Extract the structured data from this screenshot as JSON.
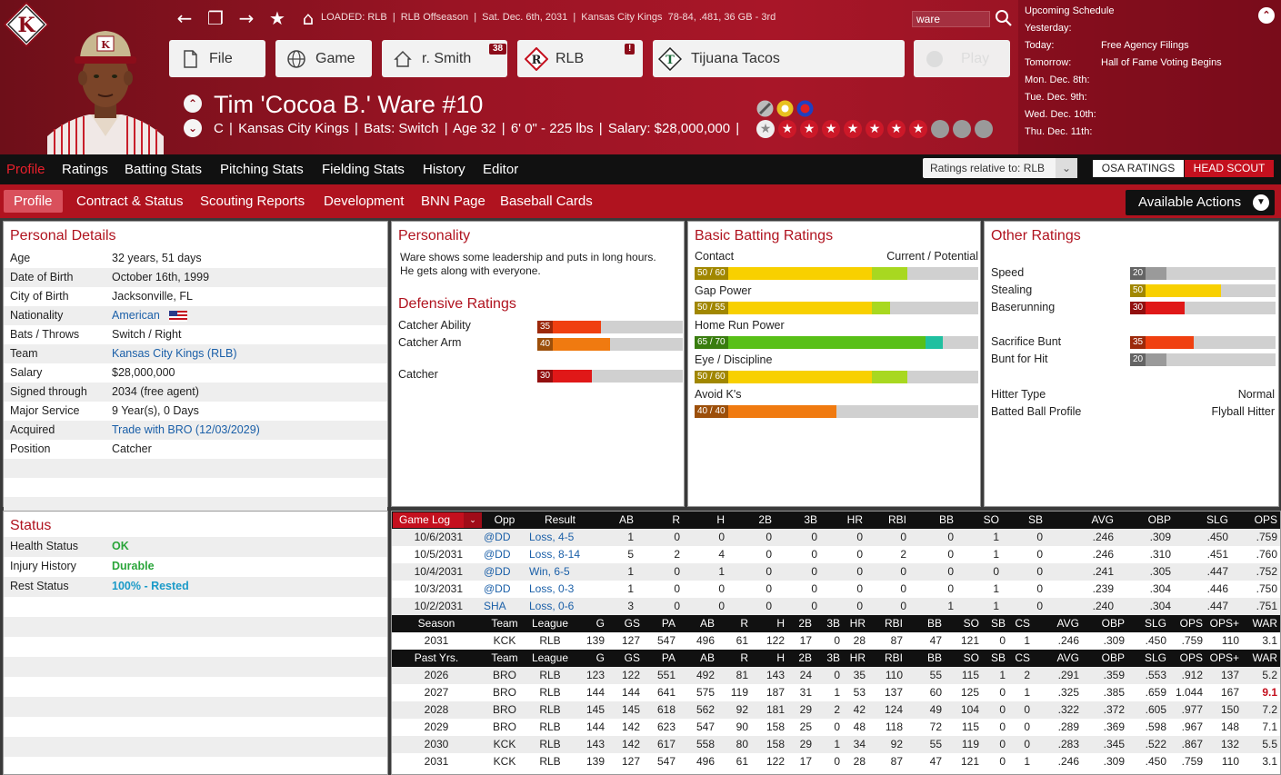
{
  "header": {
    "loaded": [
      "LOADED: RLB",
      "|",
      "RLB Offseason",
      "|",
      "Sat. Dec. 6th, 2031",
      "|",
      "Kansas City Kings",
      "78-84, .481, 36 GB - 3rd"
    ],
    "search_value": "ware",
    "buttons": {
      "file": "File",
      "game": "Game",
      "manager": "r. Smith",
      "manager_badge": "38",
      "league": "RLB",
      "league_badge": "!",
      "team": "Tijuana Tacos",
      "play": "Play"
    },
    "player_name": "Tim 'Cocoa B.' Ware  #10",
    "player_info": [
      "C",
      "|",
      "Kansas City Kings",
      "|",
      "Bats: Switch",
      "|",
      "Age 32",
      "|",
      "6' 0\" - 225 lbs",
      "|",
      "Salary: $28,000,000",
      "|"
    ],
    "stars_filled": 7,
    "stars_total": 11
  },
  "schedule": {
    "title": "Upcoming Schedule",
    "rows": [
      {
        "day": "Yesterday:",
        "event": ""
      },
      {
        "day": "Today:",
        "event": "Free Agency Filings"
      },
      {
        "day": "Tomorrow:",
        "event": "Hall of Fame Voting Begins"
      },
      {
        "day": "Mon. Dec. 8th:",
        "event": ""
      },
      {
        "day": "Tue. Dec. 9th:",
        "event": ""
      },
      {
        "day": "Wed. Dec. 10th:",
        "event": ""
      },
      {
        "day": "Thu. Dec. 11th:",
        "event": ""
      }
    ]
  },
  "main_tabs": [
    "Profile",
    "Ratings",
    "Batting Stats",
    "Pitching Stats",
    "Fielding Stats",
    "History",
    "Editor"
  ],
  "ratings_relative": "Ratings relative to: RLB",
  "osa_ratings": "OSA RATINGS",
  "head_scout": "HEAD SCOUT",
  "sub_tabs": [
    "Profile",
    "Contract & Status",
    "Scouting Reports",
    "Development",
    "BNN Page",
    "Baseball Cards"
  ],
  "available_actions": "Available Actions",
  "personal": {
    "title": "Personal Details",
    "rows": [
      {
        "k": "Age",
        "v": "32 years, 51 days"
      },
      {
        "k": "Date of Birth",
        "v": "October 16th, 1999"
      },
      {
        "k": "City of Birth",
        "v": "Jacksonville, FL"
      },
      {
        "k": "Nationality",
        "v": "American"
      },
      {
        "k": "Bats / Throws",
        "v": "Switch / Right"
      },
      {
        "k": "Team",
        "v": "Kansas City Kings (RLB)"
      },
      {
        "k": "Salary",
        "v": "$28,000,000"
      },
      {
        "k": "Signed through",
        "v": "2034 (free agent)"
      },
      {
        "k": "Major Service",
        "v": "9 Year(s), 0 Days"
      },
      {
        "k": "Acquired",
        "v": "Trade with BRO (12/03/2029)"
      },
      {
        "k": "Position",
        "v": "Catcher"
      }
    ]
  },
  "status": {
    "title": "Status",
    "rows": [
      {
        "k": "Health Status",
        "v": "OK"
      },
      {
        "k": "Injury History",
        "v": "Durable"
      },
      {
        "k": "Rest Status",
        "v": "100% - Rested"
      }
    ]
  },
  "personality": {
    "title": "Personality",
    "text": "Ware shows some leadership and puts in long hours. He gets along with everyone."
  },
  "defensive": {
    "title": "Defensive Ratings",
    "rows": [
      {
        "label": "Catcher Ability",
        "value": 35,
        "color": "#f04010"
      },
      {
        "label": "Catcher Arm",
        "value": 40,
        "color": "#f07a10"
      },
      {
        "label": "Catcher",
        "value": 30,
        "color": "#e01818"
      }
    ]
  },
  "batting": {
    "title": "Basic Batting Ratings",
    "header_left": "Contact",
    "header_right": "Current / Potential",
    "rows": [
      {
        "label": "Contact",
        "text": "50 / 60",
        "current": 50,
        "potential": 60,
        "color": "#f8d000",
        "pcolor": "#a8d820"
      },
      {
        "label": "Gap Power",
        "text": "50 / 55",
        "current": 50,
        "potential": 55,
        "color": "#f8d000",
        "pcolor": "#a8d820"
      },
      {
        "label": "Home Run Power",
        "text": "65 / 70",
        "current": 65,
        "potential": 70,
        "color": "#58c018",
        "pcolor": "#20c0a0"
      },
      {
        "label": "Eye / Discipline",
        "text": "50 / 60",
        "current": 50,
        "potential": 60,
        "color": "#f8d000",
        "pcolor": "#a8d820"
      },
      {
        "label": "Avoid K's",
        "text": "40 / 40",
        "current": 40,
        "potential": 40,
        "color": "#f07a10",
        "pcolor": "#f07a10"
      }
    ]
  },
  "other": {
    "title": "Other Ratings",
    "bars": [
      {
        "label": "Speed",
        "value": 20,
        "color": "#9a9a9a"
      },
      {
        "label": "Stealing",
        "value": 50,
        "color": "#f8d000"
      },
      {
        "label": "Baserunning",
        "value": 30,
        "color": "#e01818"
      },
      {
        "label": "Sacrifice Bunt",
        "value": 35,
        "color": "#f04010"
      },
      {
        "label": "Bunt for Hit",
        "value": 20,
        "color": "#9a9a9a"
      }
    ],
    "hitter_type_label": "Hitter Type",
    "hitter_type": "Normal",
    "batted_ball_label": "Batted Ball Profile",
    "batted_ball": "Flyball Hitter"
  },
  "game_log": {
    "dropdown": "Game Log",
    "headers": [
      "Opp",
      "Result",
      "AB",
      "R",
      "H",
      "2B",
      "3B",
      "HR",
      "RBI",
      "BB",
      "SO",
      "SB",
      "AVG",
      "OBP",
      "SLG",
      "OPS"
    ],
    "rows": [
      [
        "10/6/2031",
        "@DD",
        "Loss, 4-5",
        "1",
        "0",
        "0",
        "0",
        "0",
        "0",
        "0",
        "0",
        "1",
        "0",
        ".246",
        ".309",
        ".450",
        ".759"
      ],
      [
        "10/5/2031",
        "@DD",
        "Loss, 8-14",
        "5",
        "2",
        "4",
        "0",
        "0",
        "0",
        "2",
        "0",
        "1",
        "0",
        ".246",
        ".310",
        ".451",
        ".760"
      ],
      [
        "10/4/2031",
        "@DD",
        "Win, 6-5",
        "1",
        "0",
        "1",
        "0",
        "0",
        "0",
        "0",
        "0",
        "0",
        "0",
        ".241",
        ".305",
        ".447",
        ".752"
      ],
      [
        "10/3/2031",
        "@DD",
        "Loss, 0-3",
        "1",
        "0",
        "0",
        "0",
        "0",
        "0",
        "0",
        "0",
        "1",
        "0",
        ".239",
        ".304",
        ".446",
        ".750"
      ],
      [
        "10/2/2031",
        "SHA",
        "Loss, 0-6",
        "3",
        "0",
        "0",
        "0",
        "0",
        "0",
        "0",
        "1",
        "1",
        "0",
        ".240",
        ".304",
        ".447",
        ".751"
      ]
    ]
  },
  "season": {
    "headers": [
      "Season",
      "Team",
      "League",
      "G",
      "GS",
      "PA",
      "AB",
      "R",
      "H",
      "2B",
      "3B",
      "HR",
      "RBI",
      "BB",
      "SO",
      "SB",
      "CS",
      "AVG",
      "OBP",
      "SLG",
      "OPS",
      "OPS+",
      "WAR"
    ],
    "row": [
      "2031",
      "KCK",
      "RLB",
      "139",
      "127",
      "547",
      "496",
      "61",
      "122",
      "17",
      "0",
      "28",
      "87",
      "47",
      "121",
      "0",
      "1",
      ".246",
      ".309",
      ".450",
      ".759",
      "110",
      "3.1"
    ]
  },
  "past": {
    "headers": [
      "Past Yrs.",
      "Team",
      "League",
      "G",
      "GS",
      "PA",
      "AB",
      "R",
      "H",
      "2B",
      "3B",
      "HR",
      "RBI",
      "BB",
      "SO",
      "SB",
      "CS",
      "AVG",
      "OBP",
      "SLG",
      "OPS",
      "OPS+",
      "WAR"
    ],
    "rows": [
      [
        "2026",
        "BRO",
        "RLB",
        "123",
        "122",
        "551",
        "492",
        "81",
        "143",
        "24",
        "0",
        "35",
        "110",
        "55",
        "115",
        "1",
        "2",
        ".291",
        ".359",
        ".553",
        ".912",
        "137",
        "5.2"
      ],
      [
        "2027",
        "BRO",
        "RLB",
        "144",
        "144",
        "641",
        "575",
        "119",
        "187",
        "31",
        "1",
        "53",
        "137",
        "60",
        "125",
        "0",
        "1",
        ".325",
        ".385",
        ".659",
        "1.044",
        "167",
        "9.1"
      ],
      [
        "2028",
        "BRO",
        "RLB",
        "145",
        "145",
        "618",
        "562",
        "92",
        "181",
        "29",
        "2",
        "42",
        "124",
        "49",
        "104",
        "0",
        "0",
        ".322",
        ".372",
        ".605",
        ".977",
        "150",
        "7.2"
      ],
      [
        "2029",
        "BRO",
        "RLB",
        "144",
        "142",
        "623",
        "547",
        "90",
        "158",
        "25",
        "0",
        "48",
        "118",
        "72",
        "115",
        "0",
        "0",
        ".289",
        ".369",
        ".598",
        ".967",
        "148",
        "7.1"
      ],
      [
        "2030",
        "KCK",
        "RLB",
        "143",
        "142",
        "617",
        "558",
        "80",
        "158",
        "29",
        "1",
        "34",
        "92",
        "55",
        "119",
        "0",
        "0",
        ".283",
        ".345",
        ".522",
        ".867",
        "132",
        "5.5"
      ],
      [
        "2031",
        "KCK",
        "RLB",
        "139",
        "127",
        "547",
        "496",
        "61",
        "122",
        "17",
        "0",
        "28",
        "87",
        "47",
        "121",
        "0",
        "1",
        ".246",
        ".309",
        ".450",
        ".759",
        "110",
        "3.1"
      ]
    ],
    "highlight_war": "9.1"
  }
}
